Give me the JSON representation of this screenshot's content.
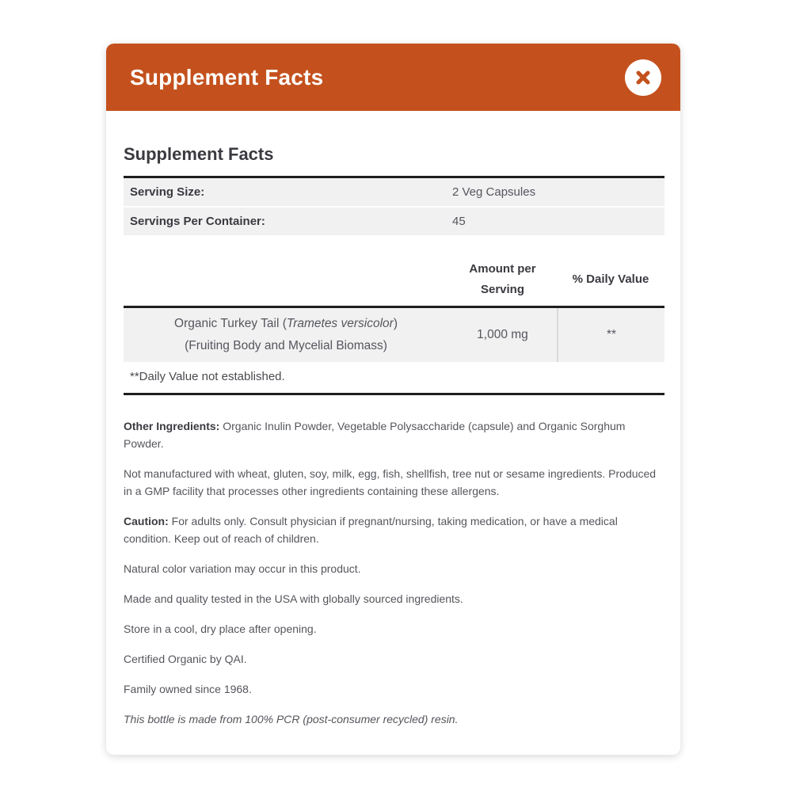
{
  "modal": {
    "title": "Supplement Facts",
    "close_icon": "x-icon"
  },
  "panel": {
    "heading": "Supplement Facts"
  },
  "serving_info": {
    "rows": [
      {
        "label": "Serving Size:",
        "value": "2 Veg Capsules"
      },
      {
        "label": "Servings Per Container:",
        "value": "45"
      }
    ]
  },
  "nutrients": {
    "columns": {
      "amount": "Amount per Serving",
      "daily_value": "% Daily Value"
    },
    "rows": [
      {
        "name_pre": "Organic Turkey Tail (",
        "name_italic": "Trametes versicolor",
        "name_post": ")",
        "name_line2": "(Fruiting Body and Mycelial Biomass)",
        "amount": "1,000 mg",
        "daily_value": "**"
      }
    ],
    "footnote": "**Daily Value not established."
  },
  "notes": [
    {
      "bold": "Other Ingredients:",
      "text": "Organic Inulin Powder, Vegetable Polysaccharide (capsule) and Organic Sorghum Powder."
    },
    {
      "bold": "",
      "text": "Not manufactured with wheat, gluten, soy, milk, egg, fish, shellfish, tree nut or sesame ingredients. Produced in a GMP facility that processes other ingredients containing these allergens."
    },
    {
      "bold": "Caution:",
      "text": "For adults only. Consult physician if pregnant/nursing, taking medication, or have a medical condition. Keep out of reach of children."
    },
    {
      "bold": "",
      "text": "Natural color variation may occur in this product."
    },
    {
      "bold": "",
      "text": "Made and quality tested in the USA with globally sourced ingredients."
    },
    {
      "bold": "",
      "text": "Store in a cool, dry place after opening."
    },
    {
      "bold": "",
      "text": "Certified Organic by QAI."
    },
    {
      "bold": "",
      "text": "Family owned since 1968."
    },
    {
      "bold": "",
      "text": "This bottle is made from 100% PCR (post-consumer recycled) resin.",
      "italic": true
    }
  ],
  "colors": {
    "header_bg": "#C4511D",
    "header_text": "#FFFFFF",
    "close_x": "#C4511D",
    "heading_text": "#3A3A40",
    "body_text": "#55565C",
    "row_bg": "#F1F1F2",
    "thick_rule": "#1E1E1E",
    "column_divider": "#D9D9DB"
  }
}
